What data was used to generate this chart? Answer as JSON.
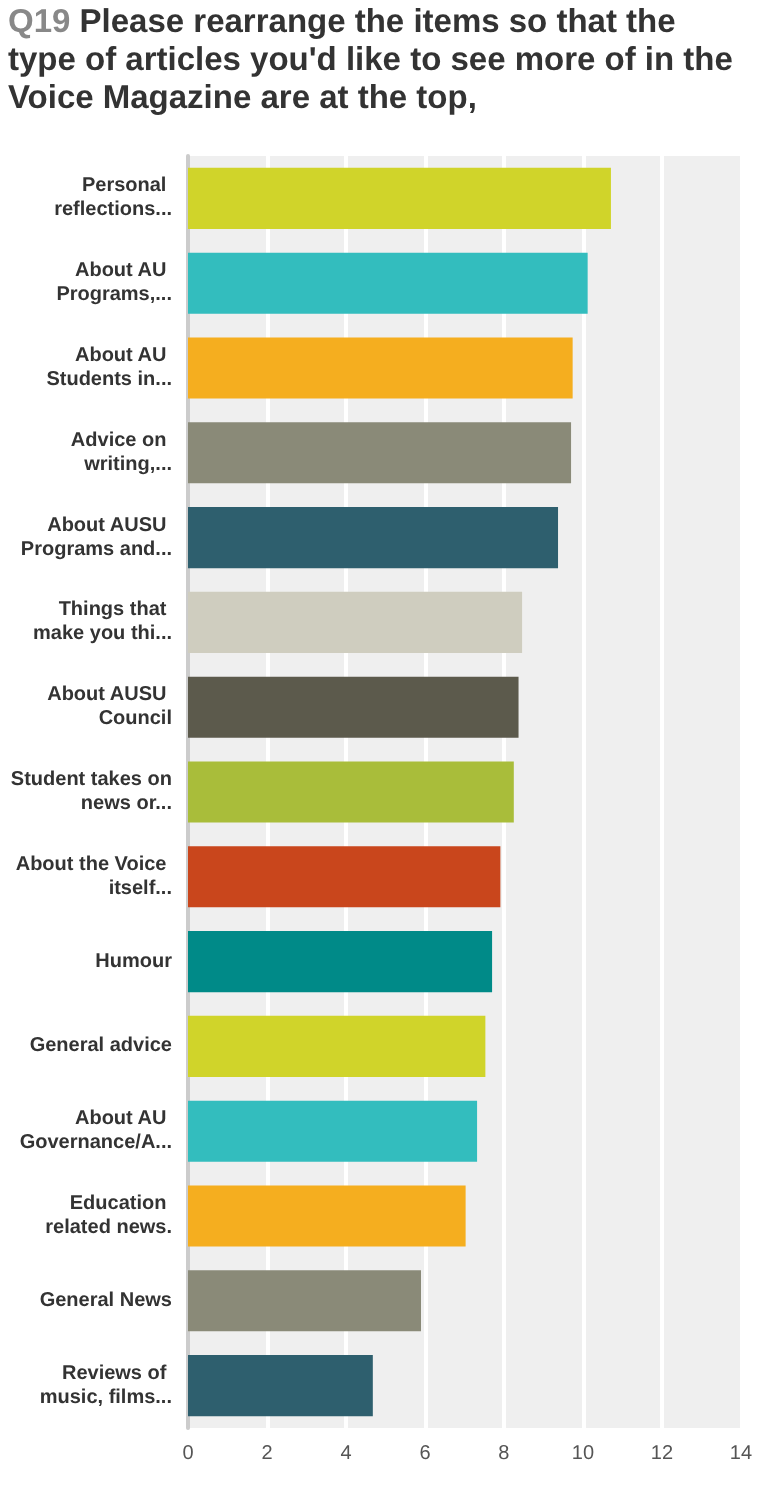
{
  "chart_data": {
    "type": "bar",
    "orientation": "horizontal",
    "title": "Q19 Please rearrange the items so that the type of articles you'd like to see more of in the Voice Magazine are at the top,",
    "categories": [
      "Personal reflections...",
      "About AU Programs,...",
      "About AU Students in...",
      "Advice on writing,...",
      "About AUSU Programs and...",
      "Things that make you thi...",
      "About AUSU Council",
      "Student takes on news or...",
      "About the Voice itself...",
      "Humour",
      "General advice",
      "About AU Governance/A...",
      "Education related news.",
      "General News",
      "Reviews of music, films..."
    ],
    "values": [
      10.71,
      10.12,
      9.74,
      9.7,
      9.37,
      8.46,
      8.37,
      8.25,
      7.91,
      7.7,
      7.53,
      7.32,
      7.03,
      5.9,
      4.68
    ],
    "colors": [
      "#d0d42a",
      "#33bdbe",
      "#f5ae1f",
      "#8a8a78",
      "#2e5f6e",
      "#cfcdbf",
      "#5c5a4c",
      "#a9bd3a",
      "#c9461c",
      "#008a88",
      "#d0d42a",
      "#33bdbe",
      "#f5ae1f",
      "#8a8a78",
      "#2e5f6e"
    ],
    "xlim": [
      0,
      14
    ],
    "xticks": [
      0,
      2,
      4,
      6,
      8,
      10,
      12,
      14
    ],
    "grid": "x"
  }
}
